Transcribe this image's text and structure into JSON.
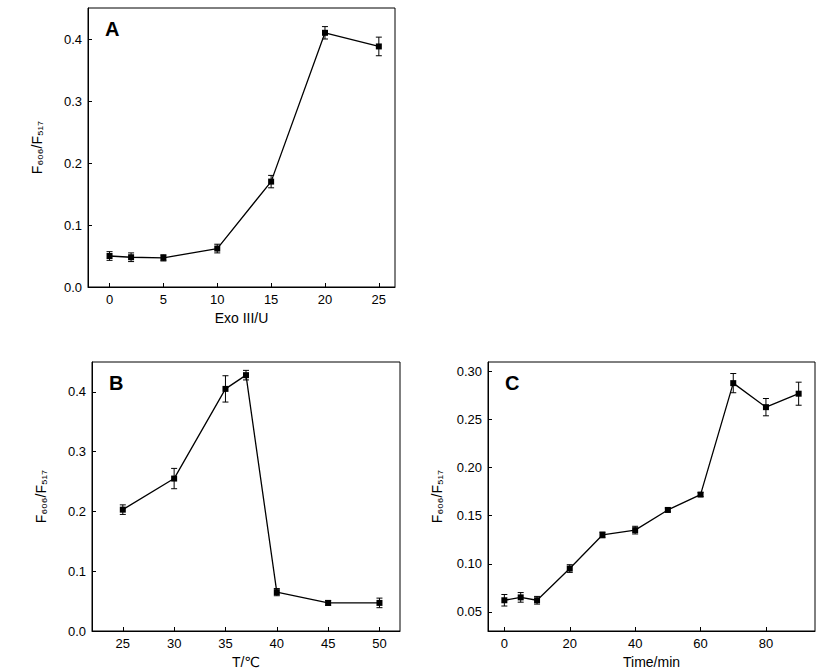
{
  "chart_data": [
    {
      "type": "line",
      "title": "A",
      "x_label": "Exo III/U",
      "y_label": "F₆₀₆/F₅₁₇",
      "x": [
        0,
        2,
        5,
        10,
        15,
        20,
        25
      ],
      "values": [
        0.05,
        0.048,
        0.047,
        0.062,
        0.17,
        0.41,
        0.388
      ],
      "errors": [
        0.007,
        0.007,
        0.005,
        0.007,
        0.01,
        0.01,
        0.015
      ],
      "xlim": [
        -2,
        26.5
      ],
      "xticks": [
        0,
        5,
        10,
        15,
        20,
        25
      ],
      "ylim": [
        0,
        0.45
      ],
      "yticks": [
        {
          "value": 0,
          "label": "0.0"
        },
        0.1,
        0.2,
        0.3,
        0.4
      ],
      "color": "#000000",
      "marker": "square",
      "grid": false
    },
    {
      "type": "line",
      "title": "B",
      "x_label": "T/℃",
      "y_label": "F₆₀₆/F₅₁₇",
      "x": [
        25,
        30,
        35,
        37,
        40,
        45,
        50
      ],
      "values": [
        0.203,
        0.255,
        0.405,
        0.428,
        0.065,
        0.047,
        0.047
      ],
      "errors": [
        0.008,
        0.017,
        0.022,
        0.008,
        0.006,
        0.004,
        0.008
      ],
      "xlim": [
        22,
        52
      ],
      "xticks": [
        25,
        30,
        35,
        40,
        45,
        50
      ],
      "ylim": [
        0,
        0.45
      ],
      "yticks": [
        {
          "value": 0,
          "label": "0.0"
        },
        0.1,
        0.2,
        0.3,
        0.4
      ],
      "color": "#000000",
      "marker": "square",
      "grid": false
    },
    {
      "type": "line",
      "title": "C",
      "x_label": "Time/min",
      "y_label": "F₆₀₆/F₅₁₇",
      "x": [
        0,
        5,
        10,
        20,
        30,
        40,
        50,
        60,
        70,
        80,
        90
      ],
      "values": [
        0.062,
        0.065,
        0.062,
        0.095,
        0.13,
        0.135,
        0.156,
        0.172,
        0.288,
        0.263,
        0.277
      ],
      "errors": [
        0.006,
        0.005,
        0.004,
        0.004,
        0.003,
        0.004,
        0.002,
        0.002,
        0.01,
        0.009,
        0.012
      ],
      "xlim": [
        -5,
        95
      ],
      "xticks": [
        0,
        20,
        40,
        60,
        80
      ],
      "ylim": [
        0.03,
        0.31
      ],
      "yticks": [
        0.05,
        {
          "value": 0.1,
          "label": "0.10"
        },
        0.15,
        {
          "value": 0.2,
          "label": "0.20"
        },
        0.25,
        {
          "value": 0.3,
          "label": "0.30"
        }
      ],
      "color": "#000000",
      "marker": "square",
      "grid": false
    }
  ]
}
